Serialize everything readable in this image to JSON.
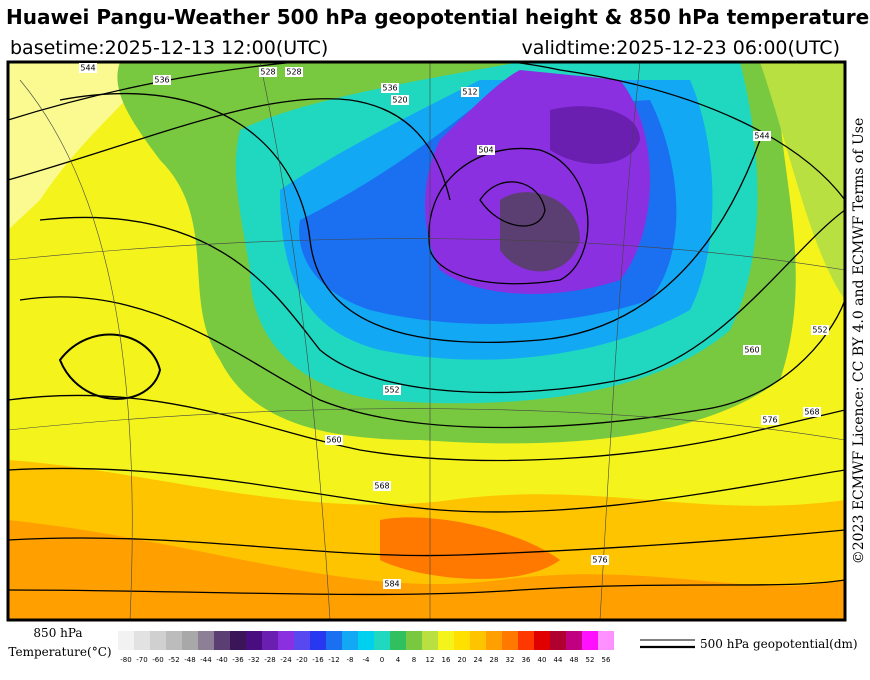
{
  "header": {
    "title": "Huawei Pangu-Weather 500 hPa geopotential height & 850 hPa temperature",
    "basetime": "basetime:2025-12-13 12:00(UTC)",
    "validtime": "validtime:2025-12-23 06:00(UTC)"
  },
  "license": "©2023 ECMWF Licence: CC BY 4.0 and ECMWF Terms of Use",
  "colorbar": {
    "title_line1": "850 hPa",
    "title_line2": "Temperature(°C)",
    "labels": [
      "-80",
      "-70",
      "-60",
      "-52",
      "-48",
      "-44",
      "-40",
      "-36",
      "-32",
      "-28",
      "-24",
      "-20",
      "-16",
      "-12",
      "-8",
      "-4",
      "0",
      "4",
      "8",
      "12",
      "16",
      "20",
      "24",
      "28",
      "32",
      "36",
      "40",
      "44",
      "48",
      "52",
      "56"
    ],
    "colors": [
      "#f2f2f2",
      "#e2e2e2",
      "#d0d0d0",
      "#bcbcbc",
      "#a8a8a8",
      "#8c7f96",
      "#5c3f72",
      "#3a1558",
      "#4a0d80",
      "#6a1fb0",
      "#8a30e0",
      "#5848f0",
      "#2838f0",
      "#1a70f0",
      "#12a8f4",
      "#00d0f0",
      "#20d8c0",
      "#30c060",
      "#78c840",
      "#b8e040",
      "#f4f41c",
      "#ffe000",
      "#ffc400",
      "#ffa000",
      "#ff7800",
      "#ff3800",
      "#e00000",
      "#b00030",
      "#c00080",
      "#ff10ff",
      "#ff90ff"
    ]
  },
  "legend": "500 hPa geopotential(dm)",
  "map": {
    "contour_labels": [
      "544",
      "536",
      "528",
      "520",
      "512",
      "504",
      "528",
      "536",
      "544",
      "552",
      "552",
      "560",
      "568",
      "576",
      "584",
      "576",
      "560",
      "568"
    ]
  }
}
